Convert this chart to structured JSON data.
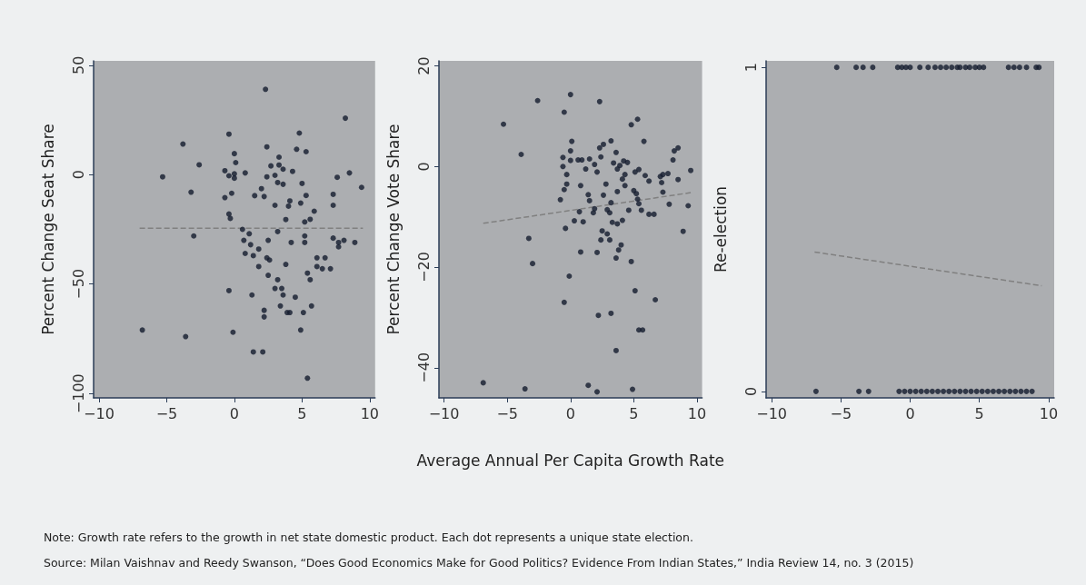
{
  "chart_data": [
    {
      "type": "scatter",
      "ylabel": "Percent Change Seat Share",
      "xlim": [
        -10.4,
        10.4
      ],
      "xticks": [
        -10,
        -5,
        0,
        5,
        10
      ],
      "ylim": [
        -102,
        52
      ],
      "yticks": [
        -100,
        -50,
        0,
        50
      ],
      "grid": false,
      "series": [
        {
          "marker": "circle",
          "color": "#141c2e",
          "x": [
            2.3,
            -3.8,
            -5.3,
            -2.6,
            -3.2,
            -3.0,
            -6.8,
            -3.6,
            -0.4,
            0,
            0.1,
            -0.7,
            -0.4,
            0,
            0,
            0.8,
            -0.7,
            -0.2,
            -0.4,
            -0.3,
            1.5,
            0.6,
            1.1,
            0.7,
            1.2,
            0.8,
            1.4,
            1.8,
            1.8,
            2.4,
            2.7,
            3.0,
            2.4,
            3.3,
            3.3,
            3.6,
            3.2,
            3.6,
            4.3,
            2.0,
            2.2,
            3.0,
            4.1,
            4.0,
            3.8,
            3.2,
            2.5,
            4.2,
            2.4,
            2.6,
            3.8,
            2.5,
            3.2,
            3.0,
            3.5,
            3.6,
            3.4,
            3.9,
            4.1,
            1.3,
            2.2,
            2.2,
            -0.4,
            -0.1,
            1.4,
            2.1,
            4.8,
            4.6,
            5.3,
            5.0,
            4.9,
            5.3,
            5.2,
            5.6,
            5.9,
            5.2,
            5.2,
            5.4,
            5.6,
            4.5,
            5.7,
            5.1,
            4.9,
            5.4,
            6.1,
            6.7,
            6.1,
            6.5,
            7.1,
            7.6,
            7.3,
            7.3,
            7.3,
            7.7,
            8.1,
            7.7,
            8.9,
            8.2,
            8.5,
            9.4
          ],
          "values": [
            39,
            14,
            -1,
            4.5,
            -8,
            -28,
            -71,
            -74,
            18.5,
            9.6,
            5.5,
            1.8,
            -0.5,
            0.4,
            -1.6,
            0.8,
            -10.5,
            -8.5,
            -18,
            -20,
            -9.6,
            -25,
            -27,
            -30,
            -32,
            -36,
            -37,
            -34,
            -42,
            12.7,
            4,
            -0.3,
            -1,
            8,
            4.4,
            2.5,
            -3.6,
            -4.4,
            1.5,
            -6.4,
            -10,
            -14,
            -12,
            -14.4,
            -20.5,
            -26,
            -30,
            -31,
            -38,
            -39,
            -41,
            -46,
            -48,
            -52,
            -52,
            -55,
            -60,
            -63,
            -63,
            -55,
            -62,
            -65,
            -53,
            -72,
            -81,
            -81,
            19,
            11.6,
            10.5,
            -4,
            -13,
            -9.5,
            -21.6,
            -20.4,
            -16.7,
            -28,
            -31,
            -45,
            -48,
            -56,
            -60,
            -63,
            -71,
            -93,
            -38,
            -38,
            -42,
            -43,
            -43,
            -1.2,
            -9,
            -14,
            -29,
            -31,
            -30,
            -33,
            -31,
            25.8,
            0.8,
            -5.8
          ]
        },
        {
          "type": "line",
          "line_style": "dashed",
          "color": "#808080",
          "x": [
            -7,
            9.5
          ],
          "values": [
            -24.5,
            -24.5
          ]
        }
      ]
    },
    {
      "type": "scatter",
      "ylabel": "Percent Change Vote Share",
      "xlabel": "Average Annual Per Capita Growth Rate",
      "xlim": [
        -10.4,
        10.4
      ],
      "xticks": [
        -10,
        -5,
        0,
        5,
        10
      ],
      "ylim": [
        -46,
        21
      ],
      "yticks": [
        -40,
        -20,
        0,
        20
      ],
      "grid": false,
      "annotations": [
        "Note: Growth rate refers to the growth in net state domestic product. Each dot represents a unique state election.",
        "Source:  Milan Vaishnav and Reedy Swanson, “Does Good Economics Make for Good Politics? Evidence From Indian States,” India Review 14, no. 3 (2015)"
      ],
      "series": [
        {
          "marker": "circle",
          "color": "#141c2e",
          "x": [
            -5.3,
            -3.9,
            -2.6,
            -3.3,
            -3.0,
            -6.9,
            -3.6,
            0,
            -0.5,
            0.1,
            0,
            -0.6,
            -0.6,
            -0.3,
            -0.3,
            -0.5,
            -0.8,
            0,
            0.6,
            0.9,
            1.5,
            1.2,
            0.8,
            1.4,
            1.5,
            0.7,
            0.3,
            1.0,
            -0.4,
            0.8,
            -0.1,
            -0.5,
            1.9,
            2.1,
            2.3,
            2.6,
            3.2,
            2.4,
            2.3,
            2.8,
            2.6,
            1.9,
            1.8,
            2.9,
            3.1,
            3.2,
            3.4,
            3.6,
            3.7,
            3.7,
            3.9,
            4.2,
            4.1,
            4.3,
            4.5,
            4.3,
            4.6,
            3.3,
            3.7,
            4.1,
            2.5,
            2.9,
            2.4,
            3.1,
            2.1,
            4.0,
            3.8,
            3.6,
            4.8,
            5.1,
            6.7,
            2.2,
            3.2,
            5.4,
            5.7,
            3.6,
            1.4,
            2.1,
            4.9,
            4.8,
            5.3,
            5.8,
            5.1,
            5.4,
            5.9,
            6.2,
            5.0,
            5.2,
            5.3,
            5.4,
            5.6,
            6.2,
            6.6,
            7.1,
            7.3,
            7.7,
            7.2,
            7.3,
            7.8,
            8.1,
            8.2,
            8.5,
            8.5,
            8.9,
            9.3,
            9.5
          ],
          "values": [
            8.4,
            2.4,
            13.1,
            -14.3,
            -19.3,
            -43,
            -44.2,
            14.3,
            10.8,
            5,
            3.1,
            1.8,
            0,
            -1.6,
            -3.5,
            -4.6,
            -6.6,
            1.2,
            1.3,
            1.3,
            1.5,
            -0.5,
            -3.8,
            -5.6,
            -6.8,
            -9,
            -10.8,
            -11,
            -12.3,
            -17,
            -21.8,
            -27,
            0.4,
            -1.1,
            3.7,
            4.4,
            5.1,
            1.9,
            12.9,
            -3.5,
            -5.7,
            -8.4,
            -9.2,
            -8.6,
            -9.2,
            -7.2,
            0.7,
            2.8,
            -0.5,
            -5,
            0.2,
            1.1,
            -2.5,
            -3.8,
            0.8,
            -1.6,
            -8.7,
            -11.1,
            -11.4,
            -10.7,
            -12.8,
            -13.4,
            -14.6,
            -14.6,
            -17.1,
            -15.6,
            -16.6,
            -18.2,
            -18.9,
            -24.7,
            -26.5,
            -29.6,
            -29.2,
            -32.5,
            -32.5,
            -36.6,
            -43.5,
            -44.8,
            -44.3,
            8.3,
            9.4,
            5,
            -1.1,
            -0.6,
            -1.8,
            -2.9,
            -4.8,
            -5.4,
            -6.5,
            -7.4,
            -8.7,
            -9.5,
            -9.5,
            -2,
            -1.6,
            -1.4,
            -3.2,
            -5.1,
            -7.5,
            1.3,
            3.1,
            3.7,
            -2.6,
            -12.9,
            -7.8,
            -0.8
          ]
        },
        {
          "type": "line",
          "line_style": "dashed",
          "color": "#808080",
          "x": [
            -6.9,
            9.5
          ],
          "values": [
            -11.3,
            -5.2
          ]
        }
      ]
    },
    {
      "type": "scatter",
      "ylabel": "Re-election",
      "xlim": [
        -10.4,
        10.4
      ],
      "xticks": [
        -10,
        -5,
        0,
        5,
        10
      ],
      "ylim": [
        -0.02,
        1.02
      ],
      "yticks": [
        0,
        1
      ],
      "grid": false,
      "series": [
        {
          "marker": "circle",
          "color": "#141c2e",
          "x": [
            -5.3,
            -3.9,
            -3.4,
            -2.7,
            -0.9,
            -0.6,
            -0.3,
            0,
            0.7,
            1.3,
            1.8,
            2.2,
            2.6,
            3.0,
            3.4,
            3.6,
            4.0,
            4.3,
            4.7,
            5.0,
            5.3,
            7.1,
            7.5,
            7.9,
            8.4,
            9.1,
            9.3,
            -6.8,
            -3.7,
            -3.0,
            -0.8,
            -0.4,
            0,
            0.4,
            0.8,
            1.2,
            1.6,
            2.0,
            2.4,
            2.8,
            3.2,
            3.6,
            4.0,
            4.4,
            4.8,
            5.2,
            5.6,
            6.0,
            6.4,
            6.8,
            7.2,
            7.6,
            8.0,
            8.4,
            8.8
          ],
          "values": [
            1,
            1,
            1,
            1,
            1,
            1,
            1,
            1,
            1,
            1,
            1,
            1,
            1,
            1,
            1,
            1,
            1,
            1,
            1,
            1,
            1,
            1,
            1,
            1,
            1,
            1,
            1,
            0,
            0,
            0,
            0,
            0,
            0,
            0,
            0,
            0,
            0,
            0,
            0,
            0,
            0,
            0,
            0,
            0,
            0,
            0,
            0,
            0,
            0,
            0,
            0,
            0,
            0,
            0,
            0
          ]
        },
        {
          "type": "line",
          "line_style": "dashed",
          "color": "#808080",
          "x": [
            -6.9,
            9.5
          ],
          "values": [
            0.43,
            0.326
          ]
        }
      ]
    }
  ]
}
